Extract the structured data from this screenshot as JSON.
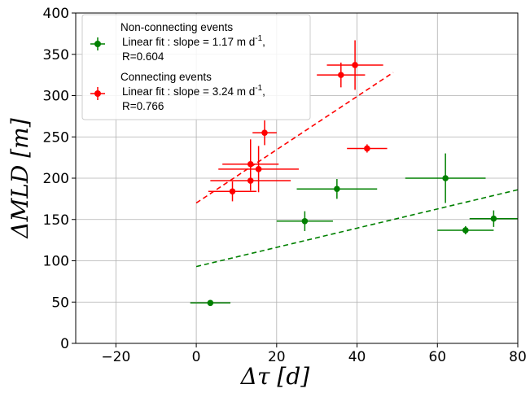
{
  "chart_data": {
    "type": "scatter",
    "xlabel": "Δτ [d]",
    "ylabel": "ΔMLD [m]",
    "xlim": [
      -30,
      80
    ],
    "ylim": [
      0,
      400
    ],
    "xticks": [
      -20,
      0,
      20,
      40,
      60,
      80
    ],
    "yticks": [
      0,
      50,
      100,
      150,
      200,
      250,
      300,
      350,
      400
    ],
    "grid": true,
    "legend_placement": "top-left",
    "series": [
      {
        "name": "Non-connecting events",
        "fit_label": "Linear fit : slope = 1.17 m d",
        "fit_exp": "-1",
        "fit_tail": ",",
        "r_label": "R=0.604",
        "color": "#008000",
        "points": [
          {
            "x": 3.5,
            "y": 49,
            "xerr": 5,
            "yerr": 0
          },
          {
            "x": 27,
            "y": 148,
            "xerr": 7,
            "yerr": 12
          },
          {
            "x": 35,
            "y": 187,
            "xerr": 10,
            "yerr": 12
          },
          {
            "x": 62,
            "y": 200,
            "xerr": 10,
            "yerr": 30
          },
          {
            "x": 67,
            "y": 137,
            "xerr": 7,
            "yerr": 5
          },
          {
            "x": 74,
            "y": 151,
            "xerr": 6,
            "yerr": 10
          }
        ],
        "fit": {
          "x": [
            0,
            80
          ],
          "y": [
            93,
            186
          ]
        }
      },
      {
        "name": "Connecting events",
        "fit_label": "Linear fit : slope = 3.24 m d",
        "fit_exp": "-1",
        "fit_tail": ",",
        "r_label": "R=0.766",
        "color": "#ff0000",
        "points": [
          {
            "x": 9,
            "y": 184,
            "xerr": 6,
            "yerr": 12
          },
          {
            "x": 13.5,
            "y": 197,
            "xerr": 10,
            "yerr": 12
          },
          {
            "x": 13.5,
            "y": 217,
            "xerr": 7,
            "yerr": 30
          },
          {
            "x": 15.5,
            "y": 211,
            "xerr": 10,
            "yerr": 28
          },
          {
            "x": 17,
            "y": 255,
            "xerr": 3,
            "yerr": 15
          },
          {
            "x": 36,
            "y": 325,
            "xerr": 6,
            "yerr": 15
          },
          {
            "x": 39.5,
            "y": 337,
            "xerr": 7,
            "yerr": 30
          },
          {
            "x": 42.5,
            "y": 236,
            "xerr": 5,
            "yerr": 5
          }
        ],
        "fit": {
          "x": [
            0,
            49
          ],
          "y": [
            170,
            328
          ]
        }
      }
    ]
  }
}
